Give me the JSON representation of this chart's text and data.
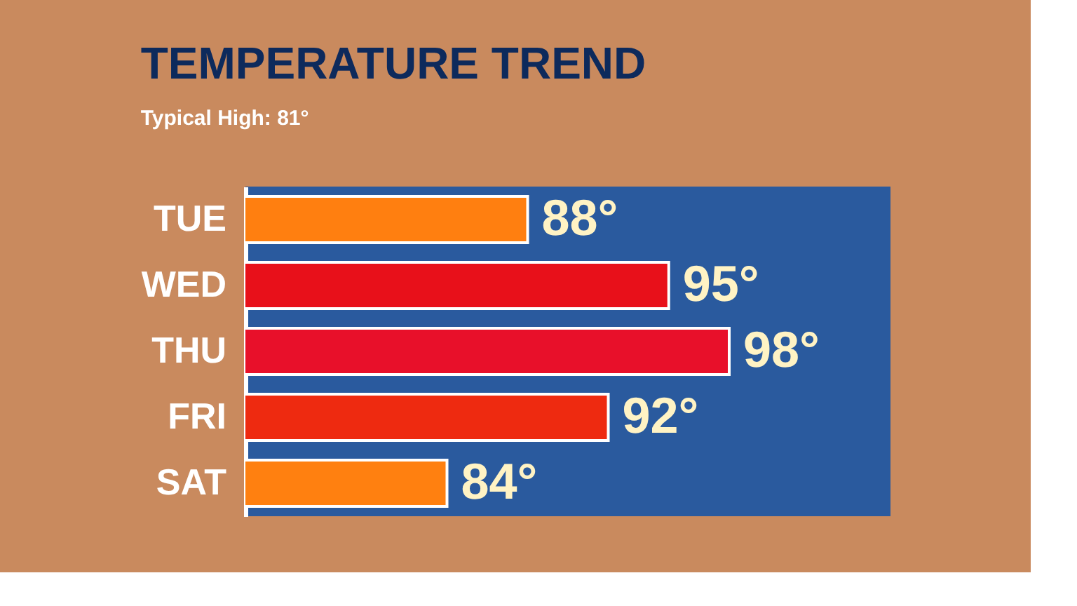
{
  "chart_data": {
    "type": "bar",
    "orientation": "horizontal",
    "title": "TEMPERATURE TREND",
    "subtitle": "Typical High: 81°",
    "categories": [
      "TUE",
      "WED",
      "THU",
      "FRI",
      "SAT"
    ],
    "values": [
      88,
      95,
      98,
      92,
      84
    ],
    "colors": [
      "#ff7f10",
      "#e8101a",
      "#e8102a",
      "#ee2a10",
      "#ff8010"
    ],
    "value_labels": [
      "88°",
      "95°",
      "98°",
      "92°",
      "84°"
    ],
    "xlim": [
      74,
      106
    ],
    "tick_labels": "y",
    "grid": false
  }
}
